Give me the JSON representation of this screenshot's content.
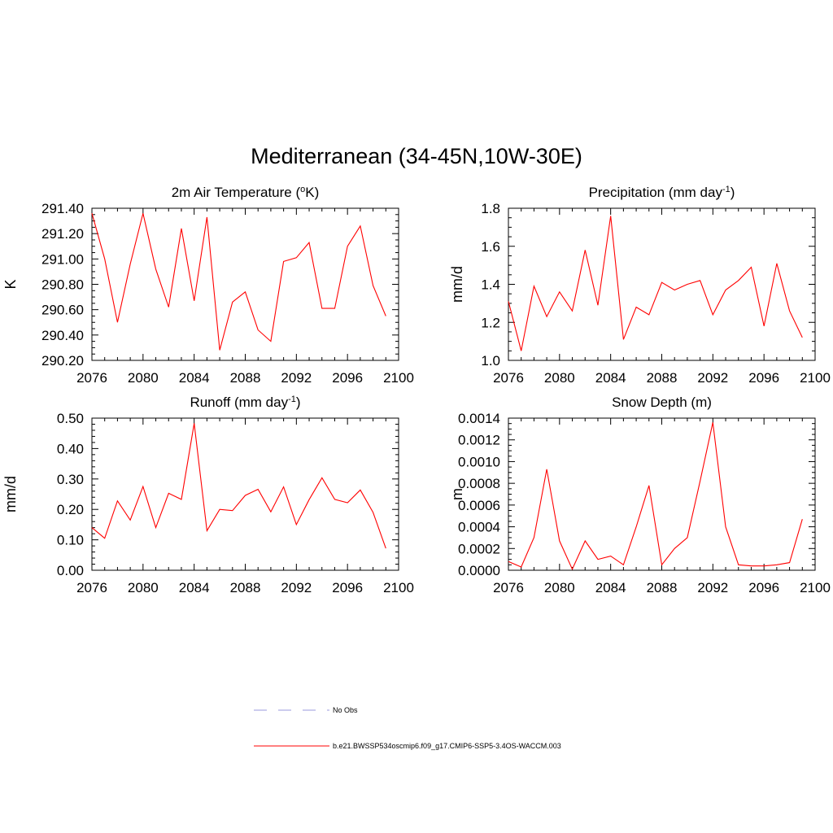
{
  "figure": {
    "title": "Mediterranean (34-45N,10W-30E)"
  },
  "chart_data": [
    {
      "type": "line",
      "title_main": "2m Air Temperature (",
      "title_sup": "o",
      "title_end": "K)",
      "ylabel": "K",
      "xlabel": "",
      "xlim": [
        2076,
        2100
      ],
      "ylim": [
        290.2,
        291.4
      ],
      "xticks": [
        2076,
        2080,
        2084,
        2088,
        2092,
        2096,
        2100
      ],
      "xtick_labels": [
        "2076",
        "2080",
        "2084",
        "2088",
        "2092",
        "2096",
        "2100"
      ],
      "xminor": 1,
      "yticks": [
        290.2,
        290.4,
        290.6,
        290.8,
        291.0,
        291.2,
        291.4
      ],
      "ytick_labels": [
        "290.20",
        "290.40",
        "290.60",
        "290.80",
        "291.00",
        "291.20",
        "291.40"
      ],
      "yminor": 0.05,
      "series": [
        {
          "name": "b.e21.BWSSP534oscmip6.f09_g17.CMIP6-SSP5-3.4OS-WACCM.003",
          "color": "#ff0000",
          "x": [
            2076,
            2077,
            2078,
            2079,
            2080,
            2081,
            2082,
            2083,
            2084,
            2085,
            2086,
            2087,
            2088,
            2089,
            2090,
            2091,
            2092,
            2093,
            2094,
            2095,
            2096,
            2097,
            2098,
            2099
          ],
          "values": [
            291.36,
            291.0,
            290.5,
            290.96,
            291.36,
            290.92,
            290.62,
            291.24,
            290.67,
            291.33,
            290.28,
            290.66,
            290.74,
            290.44,
            290.35,
            290.98,
            291.01,
            291.13,
            290.61,
            290.61,
            291.1,
            291.26,
            290.79,
            290.55
          ]
        }
      ]
    },
    {
      "type": "line",
      "title_main": "Precipitation (mm day",
      "title_sup": "-1",
      "title_end": ")",
      "ylabel": "mm/d",
      "xlabel": "",
      "xlim": [
        2076,
        2100
      ],
      "ylim": [
        1.0,
        1.8
      ],
      "xticks": [
        2076,
        2080,
        2084,
        2088,
        2092,
        2096,
        2100
      ],
      "xtick_labels": [
        "2076",
        "2080",
        "2084",
        "2088",
        "2092",
        "2096",
        "2100"
      ],
      "xminor": 1,
      "yticks": [
        1.0,
        1.2,
        1.4,
        1.6,
        1.8
      ],
      "ytick_labels": [
        "1.0",
        "1.2",
        "1.4",
        "1.6",
        "1.8"
      ],
      "yminor": 0.05,
      "series": [
        {
          "name": "b.e21.BWSSP534oscmip6.f09_g17.CMIP6-SSP5-3.4OS-WACCM.003",
          "color": "#ff0000",
          "x": [
            2076,
            2077,
            2078,
            2079,
            2080,
            2081,
            2082,
            2083,
            2084,
            2085,
            2086,
            2087,
            2088,
            2089,
            2090,
            2091,
            2092,
            2093,
            2094,
            2095,
            2096,
            2097,
            2098,
            2099
          ],
          "values": [
            1.31,
            1.05,
            1.39,
            1.23,
            1.36,
            1.26,
            1.58,
            1.29,
            1.76,
            1.11,
            1.28,
            1.24,
            1.41,
            1.37,
            1.4,
            1.42,
            1.24,
            1.37,
            1.42,
            1.49,
            1.18,
            1.51,
            1.26,
            1.12
          ]
        }
      ]
    },
    {
      "type": "line",
      "title_main": "Runoff (mm day",
      "title_sup": "-1",
      "title_end": ")",
      "ylabel": "mm/d",
      "xlabel": "",
      "xlim": [
        2076,
        2100
      ],
      "ylim": [
        0.0,
        0.5
      ],
      "xticks": [
        2076,
        2080,
        2084,
        2088,
        2092,
        2096,
        2100
      ],
      "xtick_labels": [
        "2076",
        "2080",
        "2084",
        "2088",
        "2092",
        "2096",
        "2100"
      ],
      "xminor": 1,
      "yticks": [
        0.0,
        0.1,
        0.2,
        0.3,
        0.4,
        0.5
      ],
      "ytick_labels": [
        "0.00",
        "0.10",
        "0.20",
        "0.30",
        "0.40",
        "0.50"
      ],
      "yminor": 0.02,
      "series": [
        {
          "name": "b.e21.BWSSP534oscmip6.f09_g17.CMIP6-SSP5-3.4OS-WACCM.003",
          "color": "#ff0000",
          "x": [
            2076,
            2077,
            2078,
            2079,
            2080,
            2081,
            2082,
            2083,
            2084,
            2085,
            2086,
            2087,
            2088,
            2089,
            2090,
            2091,
            2092,
            2093,
            2094,
            2095,
            2096,
            2097,
            2098,
            2099
          ],
          "values": [
            0.14,
            0.105,
            0.228,
            0.165,
            0.275,
            0.14,
            0.253,
            0.233,
            0.483,
            0.13,
            0.2,
            0.196,
            0.246,
            0.266,
            0.192,
            0.274,
            0.15,
            0.232,
            0.304,
            0.233,
            0.222,
            0.264,
            0.19,
            0.072
          ]
        }
      ]
    },
    {
      "type": "line",
      "title_main": "Snow Depth (m)",
      "title_sup": "",
      "title_end": "",
      "ylabel": "m",
      "xlabel": "",
      "xlim": [
        2076,
        2100
      ],
      "ylim": [
        0.0,
        0.0014
      ],
      "xticks": [
        2076,
        2080,
        2084,
        2088,
        2092,
        2096,
        2100
      ],
      "xtick_labels": [
        "2076",
        "2080",
        "2084",
        "2088",
        "2092",
        "2096",
        "2100"
      ],
      "xminor": 1,
      "yticks": [
        0.0,
        0.0002,
        0.0004,
        0.0006,
        0.0008,
        0.001,
        0.0012,
        0.0014
      ],
      "ytick_labels": [
        "0.0000",
        "0.0002",
        "0.0004",
        "0.0006",
        "0.0008",
        "0.0010",
        "0.0012",
        "0.0014"
      ],
      "yminor": 5e-05,
      "series": [
        {
          "name": "b.e21.BWSSP534oscmip6.f09_g17.CMIP6-SSP5-3.4OS-WACCM.003",
          "color": "#ff0000",
          "x": [
            2076,
            2077,
            2078,
            2079,
            2080,
            2081,
            2082,
            2083,
            2084,
            2085,
            2086,
            2087,
            2088,
            2089,
            2090,
            2091,
            2092,
            2093,
            2094,
            2095,
            2096,
            2097,
            2098,
            2099
          ],
          "values": [
            8e-05,
            3e-05,
            0.0003,
            0.00093,
            0.00027,
            1e-05,
            0.00027,
            0.0001,
            0.00013,
            5e-05,
            0.0004,
            0.00078,
            5e-05,
            0.0002,
            0.0003,
            0.00082,
            0.00136,
            0.0004,
            5e-05,
            4e-05,
            4e-05,
            5e-05,
            7e-05,
            0.00047
          ]
        }
      ]
    }
  ],
  "legend": [
    {
      "label": "No Obs",
      "color": "#9999dd",
      "style": "dashed"
    },
    {
      "label": "b.e21.BWSSP534oscmip6.f09_g17.CMIP6-SSP5-3.4OS-WACCM.003",
      "color": "#ff0000",
      "style": "solid"
    }
  ]
}
